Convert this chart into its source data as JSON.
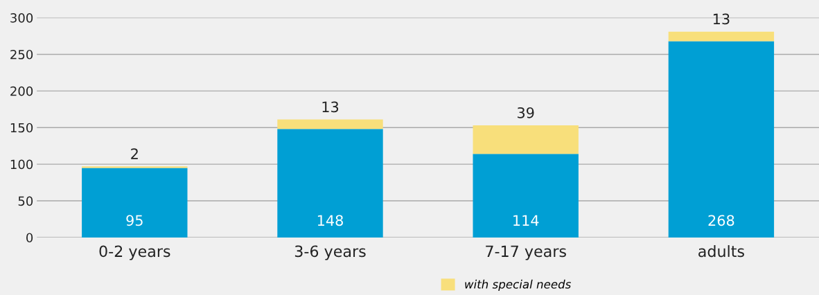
{
  "chart_data": {
    "type": "bar",
    "stacked": true,
    "categories": [
      "0-2 years",
      "3-6 years",
      "7-17 years",
      "adults"
    ],
    "series": [
      {
        "color": "#009fd4",
        "values": [
          95,
          148,
          114,
          268
        ]
      },
      {
        "name": "with special needs",
        "color": "#f8df7b",
        "values": [
          2,
          13,
          39,
          13
        ]
      }
    ],
    "ylim": [
      0,
      300
    ],
    "yticks": [
      0,
      50,
      100,
      150,
      200,
      250,
      300
    ],
    "grid": "y",
    "legend": "bottom",
    "data_labels": true
  }
}
